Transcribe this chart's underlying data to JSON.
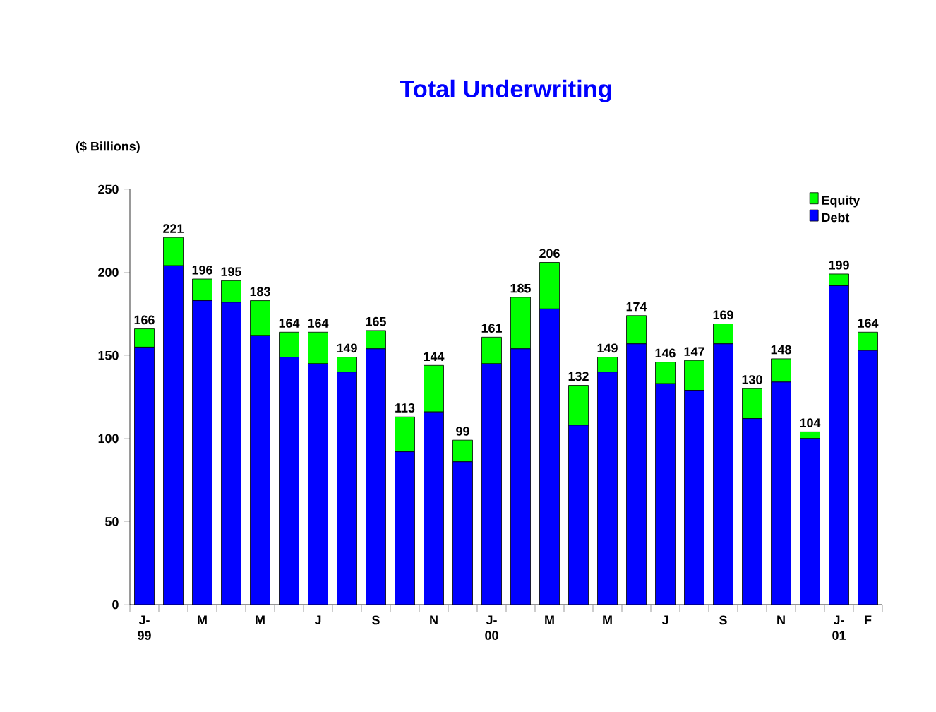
{
  "chart_data": {
    "type": "bar",
    "title": "Total Underwriting",
    "ylabel": "($ Billions)",
    "stacked": true,
    "legend": "top right",
    "categories": [
      "J- 99",
      null,
      "M",
      null,
      "M",
      null,
      "J",
      null,
      "S",
      null,
      "N",
      null,
      "J- 00",
      null,
      "M",
      null,
      "M",
      null,
      "J",
      null,
      "S",
      null,
      "N",
      null,
      "J- 01",
      "F"
    ],
    "series": [
      {
        "name": "Debt",
        "color": "#0000ff",
        "values": [
          155,
          204,
          183,
          182,
          162,
          149,
          145,
          140,
          154,
          92,
          116,
          86,
          145,
          154,
          178,
          108,
          140,
          157,
          133,
          129,
          157,
          112,
          134,
          100,
          192,
          153
        ]
      },
      {
        "name": "Equity",
        "color": "#00ff00",
        "values": [
          11,
          17,
          13,
          13,
          21,
          15,
          19,
          9,
          11,
          21,
          28,
          13,
          16,
          31,
          28,
          24,
          9,
          17,
          13,
          18,
          12,
          18,
          14,
          4,
          7,
          11
        ]
      }
    ],
    "totals": [
      "166",
      "221",
      "196",
      "195",
      "183",
      "164",
      "164",
      "149",
      "165",
      "113",
      "144",
      "99",
      "161",
      "185",
      "206",
      "132",
      "149",
      "174",
      "146",
      "147",
      "169",
      "130",
      "148",
      "104",
      "199",
      "164"
    ],
    "ylim": [
      0,
      250
    ],
    "yticks": [
      0,
      50,
      100,
      150,
      200,
      250
    ]
  }
}
